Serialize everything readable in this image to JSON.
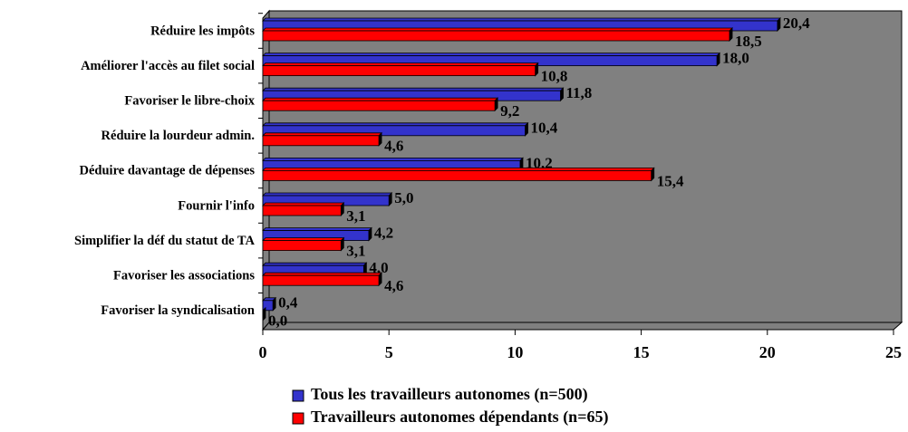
{
  "chart_data": {
    "type": "bar",
    "orientation": "horizontal",
    "categories": [
      "Réduire les impôts",
      "Améliorer l'accès au filet social",
      "Favoriser le libre-choix",
      "Réduire la lourdeur admin.",
      "Déduire davantage de dépenses",
      "Fournir l'info",
      "Simplifier la déf du statut de TA",
      "Favoriser les associations",
      "Favoriser la syndicalisation"
    ],
    "series": [
      {
        "name": "Tous les travailleurs autonomes (n=500)",
        "color": "#3333cc",
        "values": [
          20.4,
          18.0,
          11.8,
          10.4,
          10.2,
          5.0,
          4.2,
          4.0,
          0.4
        ],
        "value_labels": [
          "20,4",
          "18,0",
          "11,8",
          "10,4",
          "10,2",
          "5,0",
          "4,2",
          "4,0",
          "0,4"
        ]
      },
      {
        "name": "Travailleurs autonomes dépendants (n=65)",
        "color": "#ff0000",
        "values": [
          18.5,
          10.8,
          9.2,
          4.6,
          15.4,
          3.1,
          3.1,
          4.6,
          0.0
        ],
        "value_labels": [
          "18,5",
          "10,8",
          "9,2",
          "4,6",
          "15,4",
          "3,1",
          "3,1",
          "4,6",
          "0,0"
        ]
      }
    ],
    "xlim": [
      0,
      25
    ],
    "xticks": [
      0,
      5,
      10,
      15,
      20,
      25
    ],
    "legend": "bottom"
  }
}
